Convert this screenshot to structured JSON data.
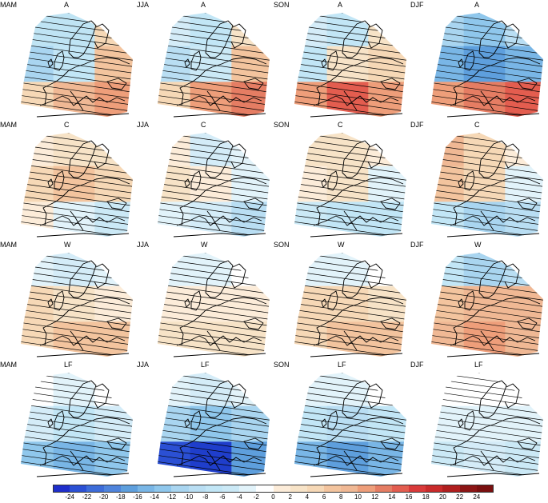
{
  "panels": [
    {
      "season": "MAM",
      "type": "A",
      "fill": [
        [
          "#bfe4f4",
          "#bfe4f4",
          "#f6d8b6"
        ],
        [
          "#a9d5f0",
          "#c2e6f6",
          "#f3c49e"
        ],
        [
          "#f6d8b6",
          "#f0b894",
          "#ee9e7a"
        ]
      ]
    },
    {
      "season": "JJA",
      "type": "A",
      "fill": [
        [
          "#d4ecf8",
          "#c2e6f6",
          "#f7e3c7"
        ],
        [
          "#b9def3",
          "#cbe9f6",
          "#f3c49e"
        ],
        [
          "#f6d8b6",
          "#ee9e7a",
          "#e57d63"
        ]
      ]
    },
    {
      "season": "SON",
      "type": "A",
      "fill": [
        [
          "#d4ecf8",
          "#c2e6f6",
          "#f7e3c7"
        ],
        [
          "#c2e6f6",
          "#f7e3c7",
          "#f6d8b6"
        ],
        [
          "#ee9e7a",
          "#e35d4f",
          "#ee9e7a"
        ]
      ]
    },
    {
      "season": "DJF",
      "type": "A",
      "fill": [
        [
          "#a9d5f0",
          "#8fc7ec",
          "#b9def3"
        ],
        [
          "#79b6e6",
          "#5e9fdd",
          "#79b6e6"
        ],
        [
          "#ee9e7a",
          "#e57d63",
          "#e35d4f"
        ]
      ]
    },
    {
      "season": "MAM",
      "type": "C",
      "fill": [
        [
          "#fcecd9",
          "#f7e3c7",
          "#f7e3c7"
        ],
        [
          "#f6d8b6",
          "#f3c49e",
          "#f6d8b6"
        ],
        [
          "#fcecd9",
          "#e2f3fa",
          "#cbe9f6"
        ]
      ]
    },
    {
      "season": "JJA",
      "type": "C",
      "fill": [
        [
          "#fcecd9",
          "#d4ecf8",
          "#e2f3fa"
        ],
        [
          "#f7e3c7",
          "#fcecd9",
          "#e2f3fa"
        ],
        [
          "#e2f3fa",
          "#d4ecf8",
          "#b9def3"
        ]
      ]
    },
    {
      "season": "SON",
      "type": "C",
      "fill": [
        [
          "#f7e3c7",
          "#f7e3c7",
          "#fcecd9"
        ],
        [
          "#fcecd9",
          "#f7e3c7",
          "#e2f3fa"
        ],
        [
          "#cbe9f6",
          "#c2e6f6",
          "#c2e6f6"
        ]
      ]
    },
    {
      "season": "DJF",
      "type": "C",
      "fill": [
        [
          "#f0b894",
          "#f6d8b6",
          "#fcecd9"
        ],
        [
          "#f3c49e",
          "#f6d8b6",
          "#e2f3fa"
        ],
        [
          "#c2e6f6",
          "#a9d5f0",
          "#b9def3"
        ]
      ]
    },
    {
      "season": "MAM",
      "type": "W",
      "fill": [
        [
          "#e2f3fa",
          "#d4ecf8",
          "#e2f3fa"
        ],
        [
          "#f6d8b6",
          "#f7e3c7",
          "#fcecd9"
        ],
        [
          "#f6d8b6",
          "#f3c49e",
          "#f3c49e"
        ]
      ]
    },
    {
      "season": "JJA",
      "type": "W",
      "fill": [
        [
          "#e2f3fa",
          "#e2f3fa",
          "#ffffff"
        ],
        [
          "#fcecd9",
          "#fcecd9",
          "#fcecd9"
        ],
        [
          "#f7e3c7",
          "#f7e3c7",
          "#f7e3c7"
        ]
      ]
    },
    {
      "season": "SON",
      "type": "W",
      "fill": [
        [
          "#e2f3fa",
          "#e2f3fa",
          "#ffffff"
        ],
        [
          "#f6d8b6",
          "#f6d8b6",
          "#f7e3c7"
        ],
        [
          "#f6d8b6",
          "#f3c49e",
          "#f3c49e"
        ]
      ]
    },
    {
      "season": "DJF",
      "type": "W",
      "fill": [
        [
          "#c2e6f6",
          "#a9d5f0",
          "#b9def3"
        ],
        [
          "#f3c49e",
          "#f0b894",
          "#f0b894"
        ],
        [
          "#f0b894",
          "#ee9e7a",
          "#f0b894"
        ]
      ]
    },
    {
      "season": "MAM",
      "type": "LF",
      "fill": [
        [
          "#ffffff",
          "#e2f3fa",
          "#ffffff"
        ],
        [
          "#d4ecf8",
          "#c2e6f6",
          "#d4ecf8"
        ],
        [
          "#8fc7ec",
          "#79b6e6",
          "#8fc7ec"
        ]
      ]
    },
    {
      "season": "JJA",
      "type": "LF",
      "fill": [
        [
          "#e2f3fa",
          "#d4ecf8",
          "#e2f3fa"
        ],
        [
          "#a9d5f0",
          "#8fc7ec",
          "#a9d5f0"
        ],
        [
          "#2b50d4",
          "#1f3ecb",
          "#5e9fdd"
        ]
      ]
    },
    {
      "season": "SON",
      "type": "LF",
      "fill": [
        [
          "#e2f3fa",
          "#e2f3fa",
          "#ffffff"
        ],
        [
          "#c2e6f6",
          "#b9def3",
          "#c2e6f6"
        ],
        [
          "#79b6e6",
          "#5e9fdd",
          "#79b6e6"
        ]
      ]
    },
    {
      "season": "DJF",
      "type": "LF",
      "fill": [
        [
          "#ffffff",
          "#ffffff",
          "#ffffff"
        ],
        [
          "#e2f3fa",
          "#e2f3fa",
          "#e2f3fa"
        ],
        [
          "#cbe9f6",
          "#d4ecf8",
          "#cbe9f6"
        ]
      ]
    }
  ],
  "colorbar": {
    "ticks": [
      "-24",
      "-22",
      "-20",
      "-18",
      "-16",
      "-14",
      "-12",
      "-10",
      "-8",
      "-6",
      "-4",
      "-2",
      "0",
      "2",
      "4",
      "6",
      "8",
      "10",
      "12",
      "14",
      "16",
      "18",
      "20",
      "22",
      "24"
    ],
    "colors": [
      "#1f2ecb",
      "#2b50d4",
      "#3d6cd9",
      "#4f84dc",
      "#5e9fdd",
      "#79b6e6",
      "#8fc7ec",
      "#a9d5f0",
      "#b9def3",
      "#c2e6f6",
      "#cbe9f6",
      "#e2f3fa",
      "#ffffff",
      "#fcecd9",
      "#f7e3c7",
      "#f6d8b6",
      "#f3c49e",
      "#f0b894",
      "#ee9e7a",
      "#e57d63",
      "#e35d4f",
      "#d93a3a",
      "#c92a2a",
      "#b01e1e",
      "#8c1515",
      "#7a0f0f"
    ]
  }
}
